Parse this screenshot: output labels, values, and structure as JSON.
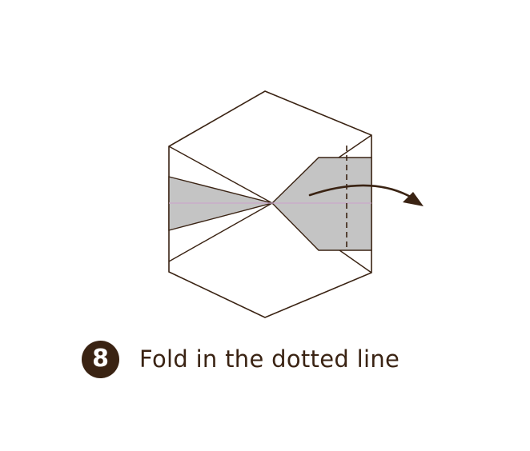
{
  "step": {
    "number": "8",
    "instruction": "Fold in the dotted line"
  },
  "colors": {
    "outline": "#3a2313",
    "shaded_flap": "#c4c4c4",
    "crease_guide_horizontal": "#c9a6c9",
    "crease_guide_vertical": "#f1e9b5",
    "badge": "#3a2313",
    "background": "#ffffff"
  },
  "icons": {
    "fold_direction": "curved-arrow-right-icon"
  }
}
